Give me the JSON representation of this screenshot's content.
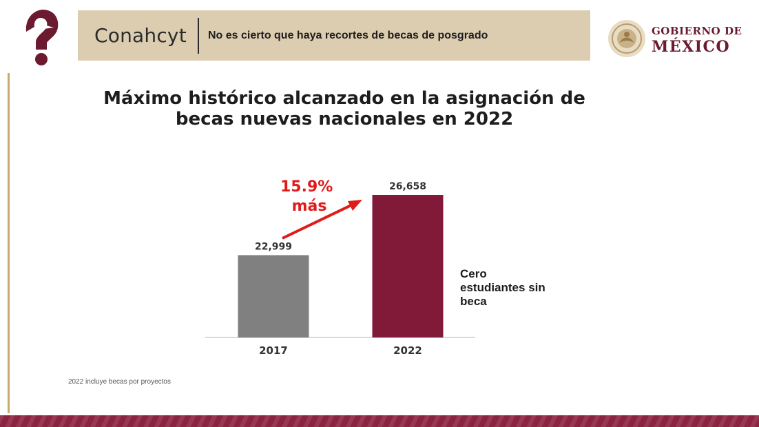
{
  "header": {
    "brand": "Conahcyt",
    "headline": "No es cierto que haya recortes de becas de posgrado"
  },
  "government_logo": {
    "line1": "GOBIERNO DE",
    "line2": "MÉXICO"
  },
  "colors": {
    "header_band": "#dccdb0",
    "brand_maroon": "#6b1a30",
    "bar_2017": "#808080",
    "bar_2022": "#801a38",
    "highlight_red": "#e01b1b",
    "bottom_band": "#8c2341",
    "side_rule": "#c8a86b"
  },
  "icons": {
    "logo": "question-mark-bird-icon",
    "seal": "national-seal-icon",
    "arrow": "trend-up-arrow-icon"
  },
  "chart_data": {
    "type": "bar",
    "title": "Máximo histórico alcanzado en la asignación de becas nuevas nacionales en 2022",
    "categories": [
      "2017",
      "2022"
    ],
    "values": [
      22999,
      26658
    ],
    "value_labels": [
      "22,999",
      "26,658"
    ],
    "ylim": [
      18000,
      27000
    ],
    "grid": false,
    "annotation": {
      "text": "15.9% más"
    }
  },
  "side_note": "Cero estudiantes sin beca",
  "footnote": "2022 incluye becas por proyectos"
}
